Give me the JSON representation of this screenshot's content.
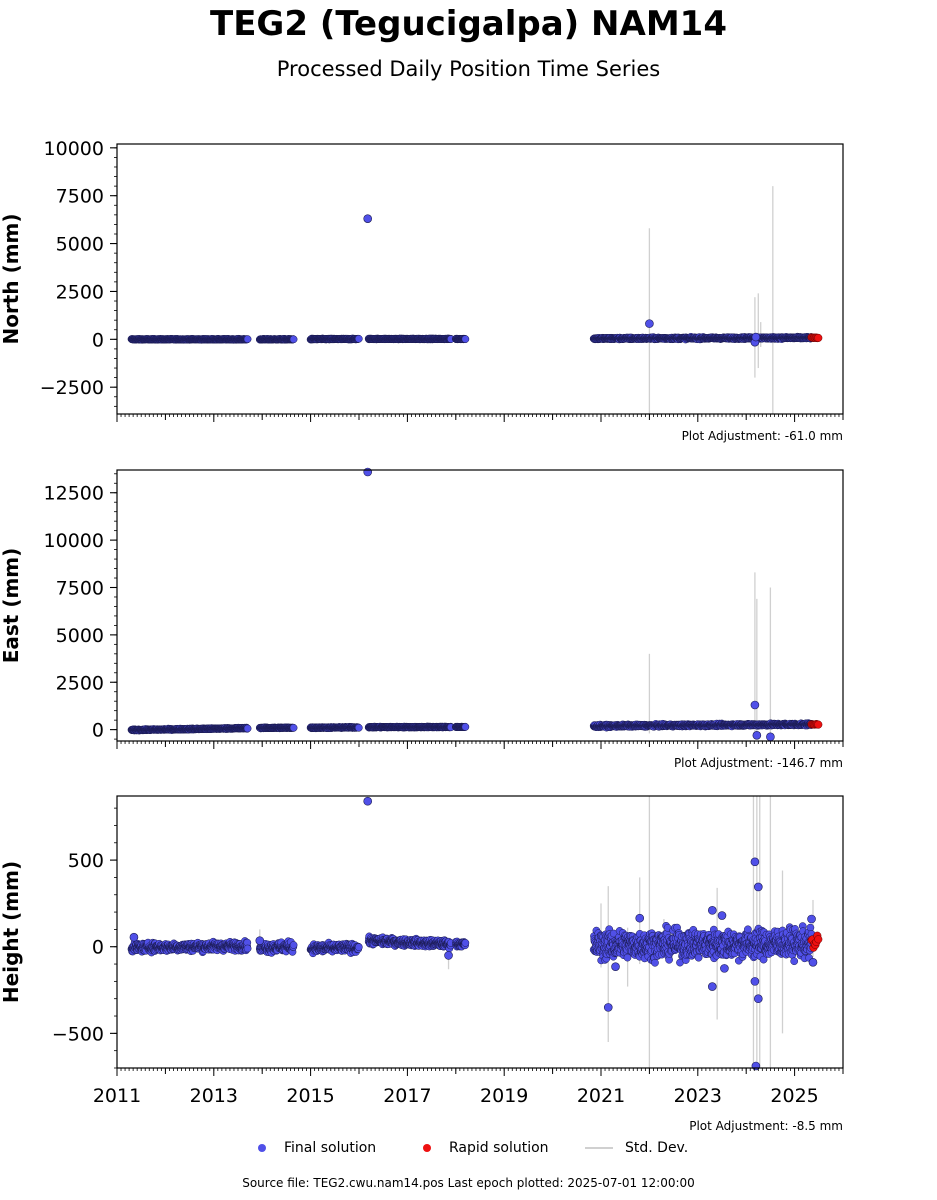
{
  "page": {
    "title": "TEG2 (Tegucigalpa) NAM14",
    "subtitle": "Processed Daily Position Time Series",
    "source_line": "Source file: TEG2.cwu.nam14.pos  Last epoch plotted: 2025-07-01 12:00:00"
  },
  "legend": {
    "final_label": "Final solution",
    "rapid_label": "Rapid solution",
    "std_label": "Std. Dev.",
    "placement": "bottom-center"
  },
  "colors": {
    "final": "#5050e8",
    "rapid": "#ee1111",
    "stddev": "#d0d0d0",
    "marker_edge": "#1a1a50"
  },
  "chart_data": [
    {
      "type": "scatter",
      "ylabel": "North (mm)",
      "adjustment": "Plot Adjustment: -61.0 mm",
      "xlim": [
        2011,
        2026
      ],
      "ylim": [
        -3900,
        10200
      ],
      "yticks": [
        -2500,
        0,
        2500,
        5000,
        7500,
        10000
      ],
      "ytick_labels": [
        "−2500",
        "0",
        "2500",
        "5000",
        "7500",
        "10000"
      ],
      "yminor": 500,
      "segments": [
        {
          "start": 2011.3,
          "end": 2013.7,
          "base": 0,
          "base_end": 0,
          "noise": 10
        },
        {
          "start": 2013.95,
          "end": 2014.65,
          "base": 0,
          "base_end": 0,
          "noise": 10
        },
        {
          "start": 2015.0,
          "end": 2016.0,
          "base": 10,
          "base_end": 15,
          "noise": 12
        },
        {
          "start": 2016.2,
          "end": 2017.9,
          "base": 20,
          "base_end": 20,
          "noise": 10
        },
        {
          "start": 2018.0,
          "end": 2018.2,
          "base": 20,
          "base_end": 20,
          "noise": 10
        },
        {
          "start": 2020.85,
          "end": 2025.35,
          "base": 40,
          "base_end": 80,
          "noise": 25
        }
      ],
      "rapid": {
        "start": 2025.35,
        "end": 2025.5,
        "base": 80
      },
      "outliers": [
        {
          "x": 2016.18,
          "y": 6300
        },
        {
          "x": 2022.0,
          "y": 820
        },
        {
          "x": 2024.18,
          "y": -150
        },
        {
          "x": 2024.2,
          "y": 120
        }
      ],
      "errorbars": [
        {
          "x": 2022.0,
          "lo": -4200,
          "hi": 5800
        },
        {
          "x": 2024.18,
          "lo": -2000,
          "hi": 2200
        },
        {
          "x": 2024.25,
          "lo": -1500,
          "hi": 2400
        },
        {
          "x": 2024.55,
          "lo": -3900,
          "hi": 8000
        },
        {
          "x": 2024.3,
          "lo": -400,
          "hi": 900
        }
      ]
    },
    {
      "type": "scatter",
      "ylabel": "East (mm)",
      "adjustment": "Plot Adjustment: -146.7 mm",
      "xlim": [
        2011,
        2026
      ],
      "ylim": [
        -600,
        13700
      ],
      "yticks": [
        0,
        2500,
        5000,
        7500,
        10000,
        12500
      ],
      "ytick_labels": [
        "0",
        "2500",
        "5000",
        "7500",
        "10000",
        "12500"
      ],
      "yminor": 500,
      "segments": [
        {
          "start": 2011.3,
          "end": 2013.7,
          "base": -20,
          "base_end": 80,
          "noise": 15
        },
        {
          "start": 2013.95,
          "end": 2014.65,
          "base": 90,
          "base_end": 100,
          "noise": 12
        },
        {
          "start": 2015.0,
          "end": 2016.0,
          "base": 100,
          "base_end": 120,
          "noise": 15
        },
        {
          "start": 2016.2,
          "end": 2017.9,
          "base": 130,
          "base_end": 140,
          "noise": 12
        },
        {
          "start": 2018.0,
          "end": 2018.2,
          "base": 140,
          "base_end": 140,
          "noise": 10
        },
        {
          "start": 2020.85,
          "end": 2025.35,
          "base": 190,
          "base_end": 280,
          "noise": 30
        }
      ],
      "rapid": {
        "start": 2025.35,
        "end": 2025.5,
        "base": 280
      },
      "outliers": [
        {
          "x": 2016.18,
          "y": 13600
        },
        {
          "x": 2024.18,
          "y": 1300
        },
        {
          "x": 2024.22,
          "y": -300
        },
        {
          "x": 2024.5,
          "y": -380
        }
      ],
      "errorbars": [
        {
          "x": 2022.0,
          "lo": -200,
          "hi": 4000
        },
        {
          "x": 2024.18,
          "lo": -300,
          "hi": 8300
        },
        {
          "x": 2024.22,
          "lo": -200,
          "hi": 6900
        },
        {
          "x": 2024.5,
          "lo": -400,
          "hi": 7500
        }
      ]
    },
    {
      "type": "scatter",
      "ylabel": "Height (mm)",
      "adjustment": "Plot Adjustment: -8.5 mm",
      "xlim": [
        2011,
        2026
      ],
      "ylim": [
        -700,
        870
      ],
      "yticks": [
        -500,
        0,
        500
      ],
      "ytick_labels": [
        "−500",
        "0",
        "500"
      ],
      "yminor": 100,
      "xticks": [
        2011,
        2013,
        2015,
        2017,
        2019,
        2021,
        2023,
        2025
      ],
      "xtick_labels": [
        "2011",
        "2013",
        "2015",
        "2017",
        "2019",
        "2021",
        "2023",
        "2025"
      ],
      "segments": [
        {
          "start": 2011.3,
          "end": 2013.7,
          "base": -5,
          "base_end": 5,
          "noise": 12
        },
        {
          "start": 2013.95,
          "end": 2014.65,
          "base": -5,
          "base_end": 0,
          "noise": 14
        },
        {
          "start": 2015.0,
          "end": 2016.0,
          "base": -10,
          "base_end": -5,
          "noise": 12
        },
        {
          "start": 2016.2,
          "end": 2017.9,
          "base": 35,
          "base_end": 15,
          "noise": 10
        },
        {
          "start": 2018.0,
          "end": 2018.2,
          "base": 15,
          "base_end": 15,
          "noise": 8
        },
        {
          "start": 2020.85,
          "end": 2025.35,
          "base": 10,
          "base_end": 20,
          "noise": 40
        }
      ],
      "rapid": {
        "start": 2025.35,
        "end": 2025.5,
        "base": 20
      },
      "outliers": [
        {
          "x": 2016.18,
          "y": 840
        },
        {
          "x": 2011.35,
          "y": 55
        },
        {
          "x": 2013.95,
          "y": 35
        },
        {
          "x": 2017.85,
          "y": -50
        },
        {
          "x": 2021.15,
          "y": -350
        },
        {
          "x": 2021.3,
          "y": -115
        },
        {
          "x": 2021.8,
          "y": 165
        },
        {
          "x": 2023.3,
          "y": 210
        },
        {
          "x": 2023.3,
          "y": -230
        },
        {
          "x": 2023.5,
          "y": 180
        },
        {
          "x": 2023.55,
          "y": -125
        },
        {
          "x": 2024.18,
          "y": 490
        },
        {
          "x": 2024.18,
          "y": -200
        },
        {
          "x": 2024.2,
          "y": -690
        },
        {
          "x": 2024.25,
          "y": 345
        },
        {
          "x": 2024.25,
          "y": -300
        },
        {
          "x": 2025.35,
          "y": 160
        },
        {
          "x": 2025.38,
          "y": -90
        }
      ],
      "errorbars": [
        {
          "x": 2011.9,
          "lo": -30,
          "hi": 40
        },
        {
          "x": 2013.95,
          "lo": -40,
          "hi": 100
        },
        {
          "x": 2017.85,
          "lo": -130,
          "hi": 30
        },
        {
          "x": 2021.0,
          "lo": -120,
          "hi": 250
        },
        {
          "x": 2021.15,
          "lo": -550,
          "hi": 350
        },
        {
          "x": 2021.55,
          "lo": -230,
          "hi": 110
        },
        {
          "x": 2021.8,
          "lo": -100,
          "hi": 400
        },
        {
          "x": 2022.0,
          "lo": -700,
          "hi": 870
        },
        {
          "x": 2022.3,
          "lo": -50,
          "hi": 160
        },
        {
          "x": 2023.4,
          "lo": -420,
          "hi": 340
        },
        {
          "x": 2024.15,
          "lo": -700,
          "hi": 870
        },
        {
          "x": 2024.22,
          "lo": -700,
          "hi": 870
        },
        {
          "x": 2024.28,
          "lo": -700,
          "hi": 870
        },
        {
          "x": 2024.5,
          "lo": -700,
          "hi": 870
        },
        {
          "x": 2024.75,
          "lo": -500,
          "hi": 440
        },
        {
          "x": 2025.38,
          "lo": -60,
          "hi": 270
        }
      ]
    }
  ]
}
